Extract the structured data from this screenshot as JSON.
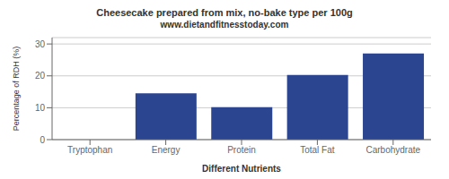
{
  "chart_data": {
    "type": "bar",
    "title": "Cheesecake prepared from mix, no-bake type per 100g",
    "subtitle": "www.dietandfitnesstoday.com",
    "xlabel": "Different Nutrients",
    "ylabel": "Percentage of RDH (%)",
    "categories": [
      "Tryptophan",
      "Energy",
      "Protein",
      "Total Fat",
      "Carbohydrate"
    ],
    "values": [
      0,
      14.5,
      10.2,
      20.3,
      27.0
    ],
    "color": "#2b4590",
    "ylim": [
      0,
      32
    ],
    "yticks": [
      0,
      10,
      20,
      30
    ],
    "grid": true
  }
}
